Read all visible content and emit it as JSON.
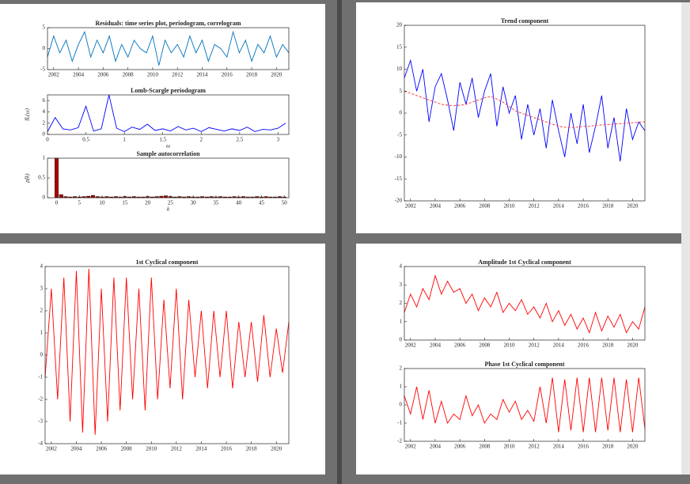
{
  "chart_data": [
    {
      "type": "line",
      "title": "Residuals: time series plot, periodogram, correlogram",
      "x": [
        2001.5,
        2002,
        2002.5,
        2003,
        2003.5,
        2004,
        2004.5,
        2005,
        2005.5,
        2006,
        2006.5,
        2007,
        2007.5,
        2008,
        2008.5,
        2009,
        2009.5,
        2010,
        2010.5,
        2011,
        2011.5,
        2012,
        2012.5,
        2013,
        2013.5,
        2014,
        2014.5,
        2015,
        2015.5,
        2016,
        2016.5,
        2017,
        2017.5,
        2018,
        2018.5,
        2019,
        2019.5,
        2020,
        2020.5,
        2021
      ],
      "series": [
        {
          "color": "#0072bd",
          "values": [
            -2,
            3,
            -1,
            2,
            -3,
            1,
            4,
            -2,
            2,
            -1,
            3,
            -3,
            1,
            -2,
            2,
            0,
            -1,
            3,
            -4,
            2,
            -1,
            1,
            -2,
            3,
            -1,
            2,
            -3,
            1,
            0,
            -2,
            4,
            -1,
            2,
            -3,
            1,
            -1,
            3,
            -2,
            1,
            -1
          ]
        }
      ],
      "xlim": [
        2001.5,
        2021
      ],
      "xticks": [
        2002,
        2004,
        2006,
        2008,
        2010,
        2012,
        2014,
        2016,
        2018,
        2020
      ],
      "ylim": [
        -5,
        5
      ],
      "yticks": [
        -5,
        0,
        5
      ]
    },
    {
      "type": "line",
      "title": "Lomb-Scargle periodogram",
      "xlabel": "ω",
      "ylabel": "IL(ω)",
      "x": [
        0,
        0.1,
        0.2,
        0.3,
        0.4,
        0.5,
        0.6,
        0.7,
        0.8,
        0.9,
        1,
        1.1,
        1.2,
        1.3,
        1.4,
        1.5,
        1.6,
        1.7,
        1.8,
        1.9,
        2,
        2.1,
        2.2,
        2.3,
        2.4,
        2.5,
        2.6,
        2.7,
        2.8,
        2.9,
        3,
        3.1
      ],
      "series": [
        {
          "color": "#0000ff",
          "values": [
            0.5,
            3,
            1,
            0.8,
            1.2,
            5,
            0.6,
            1,
            7,
            1.1,
            0.5,
            1.3,
            0.9,
            1.8,
            0.7,
            1,
            0.6,
            1.4,
            0.8,
            1.1,
            0.5,
            1.2,
            0.9,
            0.6,
            1,
            0.7,
            1.3,
            0.5,
            0.9,
            0.8,
            1.1,
            2
          ]
        }
      ],
      "xlim": [
        0,
        3.14
      ],
      "xticks": [
        0,
        0.5,
        1,
        1.5,
        2,
        2.5,
        3
      ],
      "ylim": [
        0,
        7
      ],
      "yticks": [
        0,
        2,
        4,
        6
      ]
    },
    {
      "type": "bar",
      "title": "Sample autocorrelation",
      "xlabel": "k",
      "ylabel": "ρ̂(k)",
      "x": [
        0,
        1,
        2,
        3,
        4,
        5,
        6,
        7,
        8,
        9,
        10,
        11,
        12,
        13,
        14,
        15,
        16,
        17,
        18,
        19,
        20,
        21,
        22,
        23,
        24,
        25,
        26,
        27,
        28,
        29,
        30,
        31,
        32,
        33,
        34,
        35,
        36,
        37,
        38,
        39,
        40,
        41,
        42,
        43,
        44,
        45,
        46,
        47,
        48,
        49,
        50
      ],
      "series": [
        {
          "color": "#b00000",
          "values": [
            1,
            0.08,
            0.03,
            0.02,
            0.03,
            0.02,
            0.03,
            0.04,
            0.06,
            0.03,
            0.02,
            0.03,
            0.02,
            0.03,
            0.02,
            0.03,
            0.02,
            0.03,
            0.02,
            0.02,
            0.03,
            0.02,
            0.03,
            0.04,
            0.05,
            0.03,
            0.02,
            0.03,
            0.02,
            0.03,
            0.02,
            0.02,
            0.03,
            0.02,
            0.03,
            0.02,
            0.03,
            0.02,
            0.02,
            0.03,
            0.02,
            0.03,
            0.02,
            0.02,
            0.03,
            0.02,
            0.03,
            0.02,
            0.02,
            0.03,
            0.02
          ]
        }
      ],
      "xlim": [
        -2,
        51
      ],
      "xticks": [
        0,
        5,
        10,
        15,
        20,
        25,
        30,
        35,
        40,
        45,
        50
      ],
      "ylim": [
        0,
        1
      ],
      "yticks": [
        0,
        0.5,
        1
      ]
    },
    {
      "type": "line",
      "title": "Trend component",
      "x": [
        2001.5,
        2002,
        2002.5,
        2003,
        2003.5,
        2004,
        2004.5,
        2005,
        2005.5,
        2006,
        2006.5,
        2007,
        2007.5,
        2008,
        2008.5,
        2009,
        2009.5,
        2010,
        2010.5,
        2011,
        2011.5,
        2012,
        2012.5,
        2013,
        2013.5,
        2014,
        2014.5,
        2015,
        2015.5,
        2016,
        2016.5,
        2017,
        2017.5,
        2018,
        2018.5,
        2019,
        2019.5,
        2020,
        2020.5,
        2021
      ],
      "series": [
        {
          "color": "#0000ff",
          "values": [
            8,
            12,
            5,
            10,
            -2,
            6,
            9,
            3,
            -4,
            7,
            2,
            8,
            -1,
            5,
            9,
            -3,
            6,
            0,
            4,
            -6,
            2,
            -5,
            1,
            -8,
            3,
            -4,
            -10,
            0,
            -7,
            2,
            -9,
            -3,
            4,
            -8,
            -1,
            -11,
            1,
            -6,
            -2,
            -4
          ]
        },
        {
          "color": "#ff4040",
          "style": "dashed",
          "values": [
            5,
            4.5,
            4,
            3.5,
            3,
            2.5,
            2,
            1.8,
            1.7,
            1.8,
            2,
            2.5,
            3,
            3.5,
            3.8,
            3.2,
            2.5,
            1.5,
            0.5,
            0,
            -0.5,
            -1,
            -1.5,
            -2,
            -2.5,
            -3,
            -3.2,
            -3.3,
            -3.2,
            -3,
            -3,
            -2.8,
            -2.7,
            -2.6,
            -2.5,
            -2.4,
            -2.3,
            -2.2,
            -2.1,
            -2
          ]
        }
      ],
      "xlim": [
        2001.5,
        2021
      ],
      "xticks": [
        2002,
        2004,
        2006,
        2008,
        2010,
        2012,
        2014,
        2016,
        2018,
        2020
      ],
      "ylim": [
        -20,
        20
      ],
      "yticks": [
        -20,
        -15,
        -10,
        -5,
        0,
        5,
        10,
        15,
        20
      ]
    },
    {
      "type": "line",
      "title": "1st Cyclical component",
      "x": [
        2001.5,
        2002,
        2002.5,
        2003,
        2003.5,
        2004,
        2004.5,
        2005,
        2005.5,
        2006,
        2006.5,
        2007,
        2007.5,
        2008,
        2008.5,
        2009,
        2009.5,
        2010,
        2010.5,
        2011,
        2011.5,
        2012,
        2012.5,
        2013,
        2013.5,
        2014,
        2014.5,
        2015,
        2015.5,
        2016,
        2016.5,
        2017,
        2017.5,
        2018,
        2018.5,
        2019,
        2019.5,
        2020,
        2020.5,
        2021
      ],
      "series": [
        {
          "color": "#ff0000",
          "values": [
            -1,
            3,
            -2,
            3.5,
            -3,
            3.8,
            -3.5,
            3.9,
            -3.6,
            3,
            -3,
            3.5,
            -2.5,
            3.5,
            -2,
            3,
            -2.5,
            3.5,
            -2,
            2.5,
            -1.5,
            3,
            -2,
            2.5,
            -1,
            2,
            -1.5,
            2,
            -1,
            2,
            -1.5,
            1.5,
            -1,
            1.5,
            -1.2,
            1.8,
            -1,
            1.2,
            -0.8,
            1.5
          ]
        }
      ],
      "xlim": [
        2001.5,
        2021
      ],
      "xticks": [
        2002,
        2004,
        2006,
        2008,
        2010,
        2012,
        2014,
        2016,
        2018,
        2020
      ],
      "ylim": [
        -4,
        4
      ],
      "yticks": [
        -4,
        -3,
        -2,
        -1,
        0,
        1,
        2,
        3,
        4
      ]
    },
    {
      "type": "line",
      "title": "Amplitude 1st Cyclical component",
      "x": [
        2001.5,
        2002,
        2002.5,
        2003,
        2003.5,
        2004,
        2004.5,
        2005,
        2005.5,
        2006,
        2006.5,
        2007,
        2007.5,
        2008,
        2008.5,
        2009,
        2009.5,
        2010,
        2010.5,
        2011,
        2011.5,
        2012,
        2012.5,
        2013,
        2013.5,
        2014,
        2014.5,
        2015,
        2015.5,
        2016,
        2016.5,
        2017,
        2017.5,
        2018,
        2018.5,
        2019,
        2019.5,
        2020,
        2020.5,
        2021
      ],
      "series": [
        {
          "color": "#ff0000",
          "values": [
            1.5,
            2.5,
            1.8,
            2.8,
            2.2,
            3.5,
            2.5,
            3.2,
            2.6,
            2.8,
            2,
            2.5,
            1.6,
            2.3,
            1.8,
            2.6,
            1.5,
            2,
            1.6,
            2.2,
            1.4,
            1.8,
            1.2,
            2,
            1,
            1.6,
            0.8,
            1.4,
            0.6,
            1.2,
            0.4,
            1.5,
            0.5,
            1.3,
            0.7,
            1.4,
            0.4,
            1,
            0.6,
            1.8
          ]
        }
      ],
      "xlim": [
        2001.5,
        2021
      ],
      "xticks": [
        2002,
        2004,
        2006,
        2008,
        2010,
        2012,
        2014,
        2016,
        2018,
        2020
      ],
      "ylim": [
        0,
        4
      ],
      "yticks": [
        0,
        1,
        2,
        3,
        4
      ]
    },
    {
      "type": "line",
      "title": "Phase 1st Cyclical component",
      "x": [
        2001.5,
        2002,
        2002.5,
        2003,
        2003.5,
        2004,
        2004.5,
        2005,
        2005.5,
        2006,
        2006.5,
        2007,
        2007.5,
        2008,
        2008.5,
        2009,
        2009.5,
        2010,
        2010.5,
        2011,
        2011.5,
        2012,
        2012.5,
        2013,
        2013.5,
        2014,
        2014.5,
        2015,
        2015.5,
        2016,
        2016.5,
        2017,
        2017.5,
        2018,
        2018.5,
        2019,
        2019.5,
        2020,
        2020.5,
        2021
      ],
      "series": [
        {
          "color": "#ff0000",
          "values": [
            0.5,
            -0.5,
            1,
            -0.8,
            0.8,
            -1,
            0.2,
            -1,
            -0.5,
            -0.8,
            0.5,
            -0.6,
            0,
            -1,
            -0.5,
            -0.8,
            0.3,
            -0.4,
            0.2,
            -0.8,
            -0.3,
            -0.9,
            1,
            -1,
            1.5,
            -1.5,
            1.4,
            -1.4,
            1.5,
            -1.5,
            1.5,
            -1.5,
            1.5,
            -1.4,
            1.5,
            -1.5,
            1.4,
            -1.5,
            1.5,
            -1.3
          ]
        }
      ],
      "xlim": [
        2001.5,
        2021
      ],
      "xticks": [
        2002,
        2004,
        2006,
        2008,
        2010,
        2012,
        2014,
        2016,
        2018,
        2020
      ],
      "ylim": [
        -2,
        2
      ],
      "yticks": [
        -2,
        -1,
        0,
        1,
        2
      ]
    }
  ]
}
